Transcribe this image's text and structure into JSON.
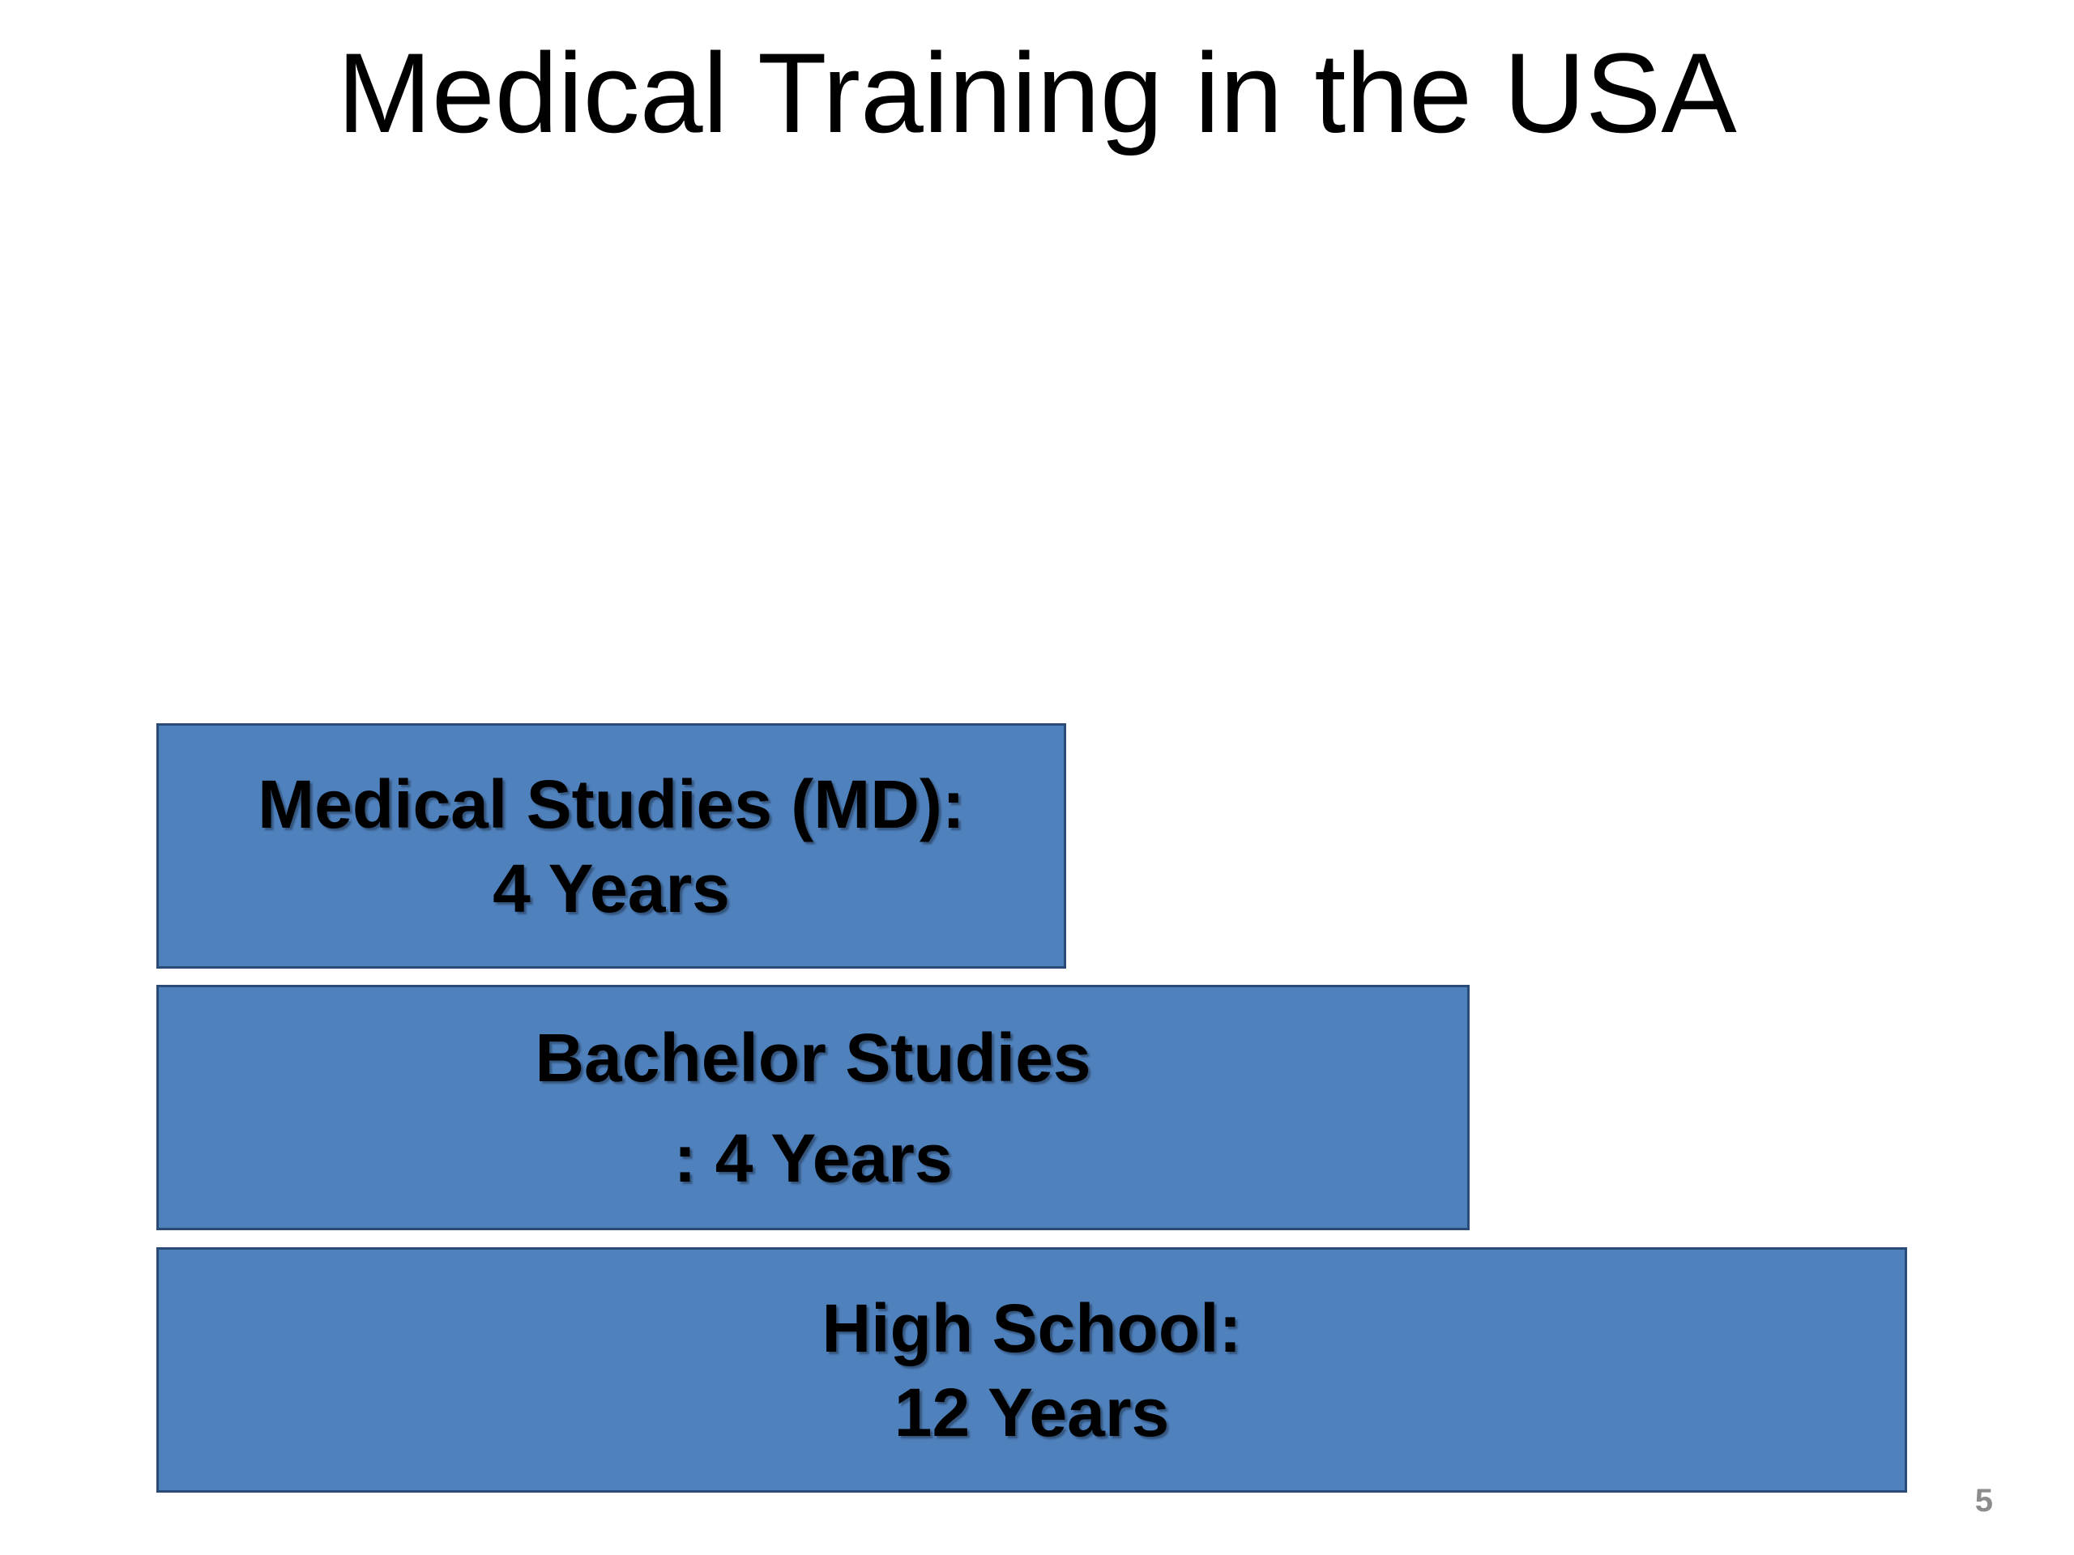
{
  "slide": {
    "title": "Medical Training in the USA",
    "page_number": "5"
  },
  "steps": [
    {
      "line1": "Medical Studies (MD):",
      "line2": "4 Years"
    },
    {
      "line1": "Bachelor Studies",
      "line2": ": 4 Years"
    },
    {
      "line1": "High School:",
      "line2": "12 Years"
    }
  ],
  "colors": {
    "box_fill": "#4f81bd",
    "box_border": "#2a4a78",
    "text": "#000000",
    "page_number": "#8c8c8c"
  }
}
